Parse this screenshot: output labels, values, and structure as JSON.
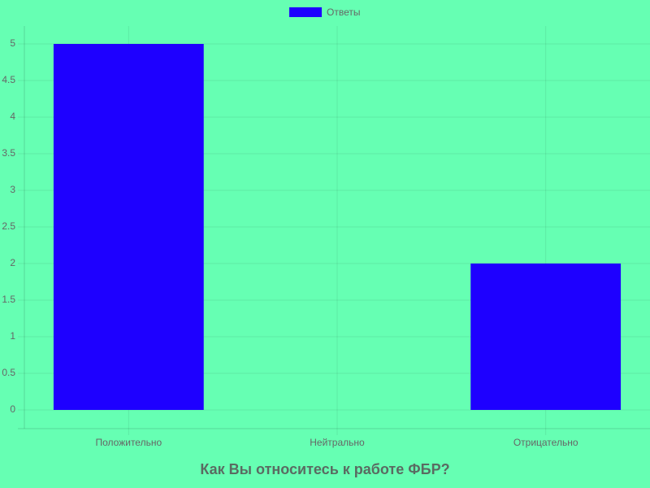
{
  "chart_data": {
    "type": "bar",
    "title": "Как Вы относитесь к работе ФБР?",
    "categories": [
      "Положительно",
      "Нейтрально",
      "Отрицательно"
    ],
    "series": [
      {
        "name": "Ответы",
        "color": "#1e00ff",
        "values": [
          5,
          0,
          2
        ]
      }
    ],
    "ylim": [
      0,
      5
    ],
    "yticks": [
      0,
      0.5,
      1,
      1.5,
      2,
      2.5,
      3,
      3.5,
      4,
      4.5,
      5
    ],
    "grid": true,
    "legend": "top"
  }
}
